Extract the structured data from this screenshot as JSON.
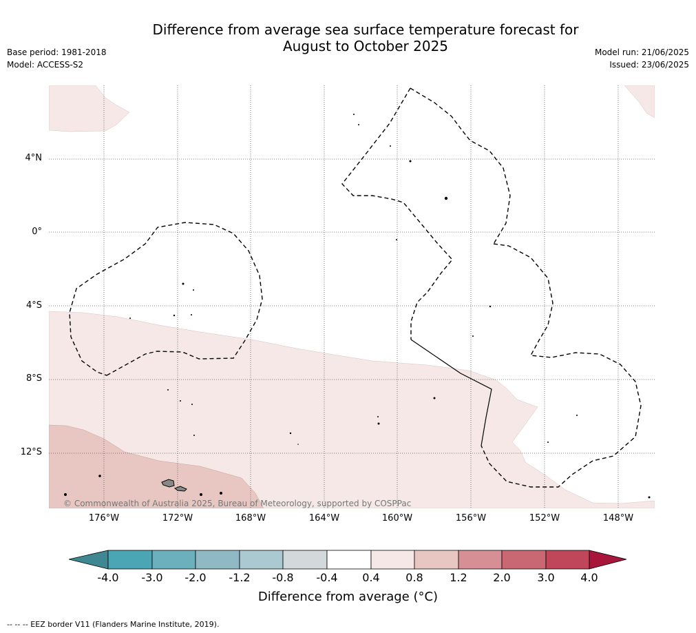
{
  "header": {
    "title_line1": "Difference from average sea surface temperature forecast for",
    "title_line2": "August to October 2025",
    "base_period": "Base period: 1981-2018",
    "model": "Model: ACCESS-S2",
    "model_run": "Model run: 21/06/2025",
    "issued": "Issued: 23/06/2025"
  },
  "map": {
    "lat_labels": [
      "4°N",
      "0°",
      "4°S",
      "8°S",
      "12°S"
    ],
    "lon_labels": [
      "176°W",
      "172°W",
      "168°W",
      "164°W",
      "160°W",
      "156°W",
      "152°W",
      "148°W"
    ],
    "copyright": "© Commonwealth of Australia 2025, Bureau of Meteorology, supported by COSPPac",
    "anomaly_fill_light": "#f5e8e6",
    "anomaly_fill_medium": "#e8c6c1"
  },
  "colorbar": {
    "ticks": [
      "-4.0",
      "-3.0",
      "-2.0",
      "-1.2",
      "-0.8",
      "-0.4",
      "0.4",
      "0.8",
      "1.2",
      "2.0",
      "3.0",
      "4.0"
    ],
    "colors": [
      "#3f8791",
      "#4aa5b5",
      "#6db0bd",
      "#8fbac5",
      "#abc9d0",
      "#d3d9da",
      "#ffffff",
      "#f5e8e6",
      "#e8c6c1",
      "#d78f96",
      "#c96873",
      "#c0475a",
      "#a8163c"
    ],
    "label": "Difference from average (°C)"
  },
  "footer": {
    "legend": "--  --  -- EEZ border V11 (Flanders Marine Institute, 2019)."
  }
}
